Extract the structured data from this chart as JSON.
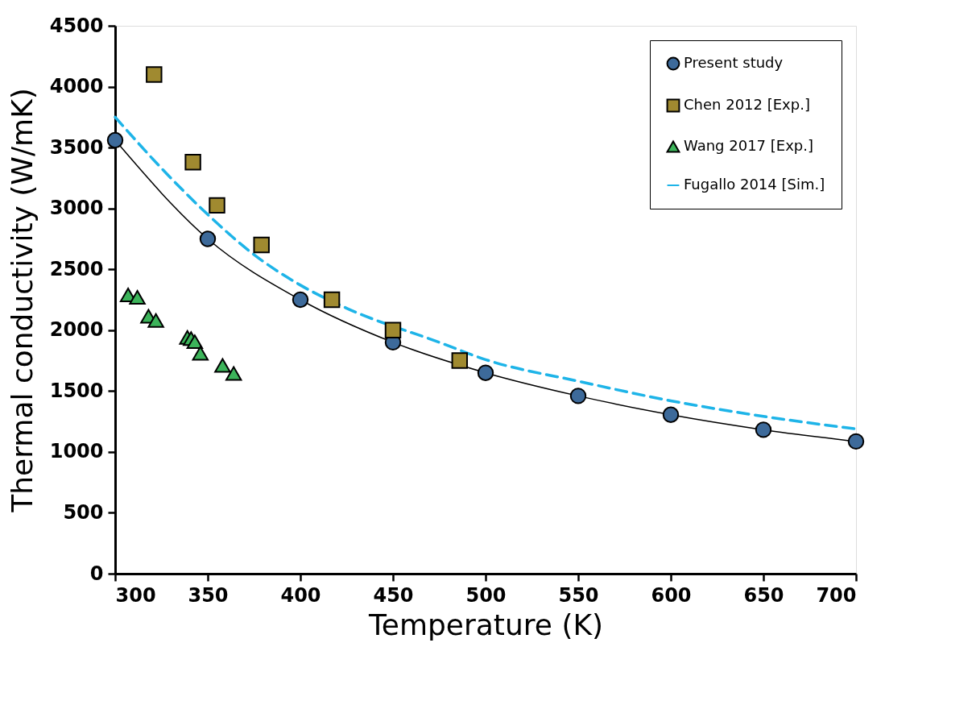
{
  "chart_data": {
    "type": "line",
    "xlabel": "Temperature (K)",
    "ylabel": "Thermal conductivity (W/mK)",
    "xlim": [
      300,
      700
    ],
    "xticks": [
      300,
      350,
      400,
      450,
      500,
      550,
      600,
      650,
      700
    ],
    "ylim": [
      0,
      4500
    ],
    "yticks": [
      0,
      500,
      1000,
      1500,
      2000,
      2500,
      3000,
      3500,
      4000,
      4500
    ],
    "grid": false,
    "legend": "top right",
    "series": [
      {
        "name": "Present study",
        "marker": "circle",
        "line_style": "solid",
        "color": "#3d6a9a",
        "x": [
          300,
          350,
          400,
          450,
          500,
          550,
          600,
          650,
          700
        ],
        "values": [
          3560,
          2750,
          2250,
          1900,
          1650,
          1460,
          1305,
          1182,
          1086
        ]
      },
      {
        "name": "Chen 2012 [Exp.]",
        "type": "scatter",
        "marker": "square",
        "color": "#a08a30",
        "x": [
          321,
          342,
          355,
          379,
          417,
          450,
          486
        ],
        "values": [
          4100,
          3380,
          3025,
          2700,
          2250,
          2000,
          1750
        ]
      },
      {
        "name": "Wang 2017 [Exp.]",
        "type": "scatter",
        "marker": "triangle",
        "color": "#3cb45a",
        "x": [
          307,
          312,
          318,
          322,
          339,
          341,
          343,
          346,
          358,
          364
        ],
        "values": [
          2290,
          2270,
          2115,
          2080,
          1940,
          1930,
          1905,
          1810,
          1710,
          1645
        ]
      },
      {
        "name": "Fugallo 2014 [Sim.]",
        "marker": "none",
        "line_style": "dashed",
        "color": "#1eb4e8",
        "x": [
          300,
          325,
          350,
          375,
          400,
          425,
          475,
          500,
          550,
          600,
          650,
          700
        ],
        "values": [
          3750,
          3330,
          2950,
          2620,
          2370,
          2180,
          1900,
          1758,
          1581,
          1420,
          1292,
          1189
        ]
      }
    ]
  }
}
